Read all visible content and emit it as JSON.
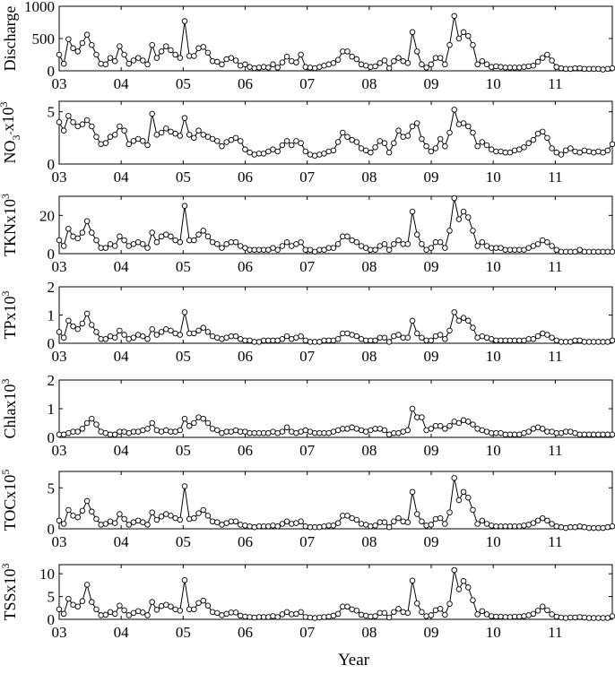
{
  "chart_data": {
    "type": "line",
    "xlabel": "Year",
    "x_ticks": [
      "03",
      "04",
      "05",
      "06",
      "07",
      "08",
      "09",
      "10",
      "11"
    ],
    "x_range": [
      2003.0,
      2011.92
    ],
    "panels": [
      {
        "id": "discharge",
        "ylabel_parts": [
          {
            "t": "Discharge",
            "sup": false
          }
        ],
        "yticks": [
          0,
          500,
          1000
        ],
        "ylim": [
          0,
          1000
        ],
        "values": [
          250,
          110,
          490,
          350,
          300,
          430,
          560,
          400,
          250,
          110,
          100,
          200,
          150,
          380,
          250,
          110,
          160,
          200,
          160,
          100,
          400,
          200,
          300,
          380,
          320,
          250,
          200,
          770,
          230,
          230,
          350,
          370,
          280,
          150,
          140,
          100,
          180,
          200,
          160,
          80,
          100,
          60,
          40,
          50,
          60,
          50,
          100,
          50,
          130,
          220,
          150,
          130,
          250,
          60,
          50,
          40,
          60,
          80,
          100,
          120,
          170,
          300,
          300,
          220,
          180,
          100,
          80,
          60,
          70,
          120,
          160,
          40,
          150,
          200,
          150,
          120,
          600,
          300,
          100,
          50,
          100,
          200,
          200,
          100,
          400,
          850,
          500,
          600,
          540,
          400,
          100,
          150,
          100,
          60,
          70,
          60,
          50,
          50,
          50,
          50,
          60,
          70,
          80,
          140,
          200,
          250,
          160,
          60,
          40,
          30,
          30,
          40,
          40,
          30,
          30,
          30,
          30,
          20,
          30,
          40
        ]
      },
      {
        "id": "no3",
        "ylabel_parts": [
          {
            "t": "NO",
            "sup": false
          },
          {
            "t": "3",
            "sub": true
          },
          {
            "t": "-",
            "sup": true
          },
          {
            "t": "x10",
            "sup": false
          },
          {
            "t": "3",
            "sup": true
          }
        ],
        "yticks": [
          0,
          5
        ],
        "ylim": [
          0,
          6
        ],
        "values": [
          4.0,
          3.2,
          4.6,
          4.0,
          3.6,
          3.8,
          4.2,
          3.6,
          2.6,
          1.9,
          2.0,
          2.6,
          2.8,
          3.6,
          3.2,
          1.9,
          2.2,
          2.4,
          2.2,
          1.8,
          4.8,
          2.8,
          3.0,
          3.4,
          3.1,
          2.9,
          2.7,
          4.4,
          2.8,
          2.5,
          3.2,
          2.8,
          2.6,
          2.4,
          2.2,
          1.7,
          2.1,
          2.3,
          2.5,
          2.2,
          1.4,
          1.1,
          0.9,
          1.0,
          1.0,
          1.2,
          1.4,
          1.2,
          1.8,
          2.2,
          1.8,
          2.2,
          2.0,
          1.2,
          0.9,
          0.8,
          0.9,
          1.0,
          1.2,
          1.3,
          2.1,
          3.0,
          2.6,
          2.3,
          2.1,
          1.5,
          1.3,
          1.1,
          1.6,
          2.2,
          2.0,
          1.1,
          2.0,
          3.2,
          2.6,
          2.7,
          3.6,
          3.9,
          2.4,
          1.7,
          1.2,
          1.5,
          2.4,
          1.7,
          3.0,
          5.2,
          3.8,
          3.9,
          3.6,
          3.0,
          1.7,
          2.1,
          1.8,
          1.4,
          1.2,
          1.2,
          1.1,
          1.1,
          1.3,
          1.4,
          1.6,
          2.0,
          2.3,
          2.9,
          3.1,
          2.5,
          1.5,
          1.1,
          0.9,
          1.3,
          1.5,
          1.2,
          1.1,
          1.3,
          1.2,
          1.1,
          1.2,
          1.1,
          1.3,
          1.9
        ]
      },
      {
        "id": "tkn",
        "ylabel_parts": [
          {
            "t": "TKNx10",
            "sup": false
          },
          {
            "t": "3",
            "sup": true
          }
        ],
        "yticks": [
          0,
          20
        ],
        "ylim": [
          0,
          30
        ],
        "values": [
          7,
          4,
          13,
          9,
          8,
          11,
          17,
          11,
          7,
          3,
          3,
          5,
          4,
          9,
          7,
          4,
          5,
          6,
          5,
          3,
          11,
          6,
          9,
          10,
          9,
          7,
          6,
          25,
          7,
          7,
          10,
          12,
          9,
          6,
          5,
          3,
          5,
          6,
          6,
          4,
          3,
          2,
          2,
          2,
          2,
          2,
          3,
          2,
          4,
          6,
          4,
          5,
          6,
          2,
          2,
          1,
          2,
          2,
          3,
          3,
          5,
          9,
          9,
          7,
          6,
          4,
          3,
          2,
          2,
          4,
          5,
          2,
          5,
          7,
          5,
          5,
          22,
          10,
          5,
          2,
          3,
          6,
          6,
          3,
          12,
          29,
          18,
          22,
          19,
          12,
          4,
          6,
          4,
          3,
          3,
          3,
          2,
          2,
          2,
          2,
          2,
          3,
          4,
          5,
          7,
          6,
          4,
          2,
          1,
          1,
          1,
          1,
          2,
          1,
          1,
          1,
          1,
          1,
          1,
          1
        ]
      },
      {
        "id": "tp",
        "ylabel_parts": [
          {
            "t": "TPx10",
            "sup": false
          },
          {
            "t": "3",
            "sup": true
          }
        ],
        "yticks": [
          0,
          1,
          2
        ],
        "ylim": [
          0,
          2
        ],
        "values": [
          0.4,
          0.2,
          0.8,
          0.6,
          0.5,
          0.7,
          1.05,
          0.65,
          0.4,
          0.15,
          0.15,
          0.25,
          0.2,
          0.45,
          0.3,
          0.15,
          0.2,
          0.3,
          0.25,
          0.15,
          0.5,
          0.3,
          0.4,
          0.5,
          0.45,
          0.35,
          0.3,
          1.1,
          0.35,
          0.35,
          0.45,
          0.55,
          0.4,
          0.25,
          0.2,
          0.15,
          0.2,
          0.25,
          0.25,
          0.15,
          0.1,
          0.1,
          0.05,
          0.05,
          0.1,
          0.1,
          0.1,
          0.1,
          0.15,
          0.25,
          0.15,
          0.2,
          0.25,
          0.1,
          0.05,
          0.05,
          0.05,
          0.1,
          0.1,
          0.1,
          0.15,
          0.35,
          0.35,
          0.3,
          0.25,
          0.15,
          0.1,
          0.1,
          0.1,
          0.2,
          0.2,
          0.05,
          0.25,
          0.3,
          0.2,
          0.2,
          0.8,
          0.35,
          0.2,
          0.1,
          0.1,
          0.25,
          0.3,
          0.15,
          0.45,
          1.1,
          0.8,
          0.9,
          0.8,
          0.55,
          0.2,
          0.25,
          0.2,
          0.15,
          0.1,
          0.1,
          0.1,
          0.1,
          0.1,
          0.1,
          0.1,
          0.15,
          0.15,
          0.25,
          0.35,
          0.3,
          0.2,
          0.1,
          0.05,
          0.05,
          0.05,
          0.1,
          0.1,
          0.05,
          0.05,
          0.05,
          0.05,
          0.05,
          0.05,
          0.1
        ]
      },
      {
        "id": "chla",
        "ylabel_parts": [
          {
            "t": "Chlax10",
            "sup": false
          },
          {
            "t": "3",
            "sup": true
          }
        ],
        "yticks": [
          0,
          1,
          2
        ],
        "ylim": [
          0,
          2
        ],
        "values": [
          0.1,
          0.1,
          0.15,
          0.2,
          0.2,
          0.3,
          0.5,
          0.65,
          0.45,
          0.2,
          0.15,
          0.1,
          0.1,
          0.2,
          0.2,
          0.15,
          0.2,
          0.2,
          0.25,
          0.3,
          0.5,
          0.25,
          0.2,
          0.25,
          0.2,
          0.2,
          0.25,
          0.65,
          0.4,
          0.5,
          0.7,
          0.65,
          0.5,
          0.3,
          0.25,
          0.15,
          0.2,
          0.2,
          0.25,
          0.2,
          0.2,
          0.15,
          0.15,
          0.15,
          0.15,
          0.15,
          0.2,
          0.15,
          0.2,
          0.35,
          0.2,
          0.15,
          0.2,
          0.25,
          0.2,
          0.15,
          0.15,
          0.15,
          0.15,
          0.2,
          0.25,
          0.3,
          0.3,
          0.35,
          0.3,
          0.25,
          0.2,
          0.25,
          0.3,
          0.3,
          0.25,
          0.1,
          0.15,
          0.15,
          0.2,
          0.25,
          1.0,
          0.7,
          0.7,
          0.25,
          0.3,
          0.4,
          0.4,
          0.3,
          0.4,
          0.55,
          0.5,
          0.6,
          0.55,
          0.45,
          0.3,
          0.25,
          0.2,
          0.15,
          0.15,
          0.15,
          0.1,
          0.1,
          0.1,
          0.1,
          0.15,
          0.2,
          0.3,
          0.35,
          0.3,
          0.2,
          0.2,
          0.15,
          0.15,
          0.2,
          0.2,
          0.15,
          0.1,
          0.1,
          0.1,
          0.1,
          0.1,
          0.1,
          0.1,
          0.1
        ]
      },
      {
        "id": "toc",
        "ylabel_parts": [
          {
            "t": "TOCx10",
            "sup": false
          },
          {
            "t": "5",
            "sup": true
          }
        ],
        "yticks": [
          0,
          5
        ],
        "ylim": [
          0,
          7
        ],
        "values": [
          1.0,
          0.6,
          2.3,
          1.6,
          1.4,
          2.2,
          3.4,
          2.1,
          1.2,
          0.5,
          0.6,
          0.9,
          0.7,
          1.8,
          1.2,
          0.5,
          0.8,
          1.0,
          0.8,
          0.5,
          2.0,
          1.1,
          1.5,
          1.8,
          1.6,
          1.3,
          1.1,
          5.2,
          1.2,
          1.3,
          1.9,
          2.3,
          1.6,
          0.9,
          0.8,
          0.5,
          0.7,
          0.9,
          0.9,
          0.5,
          0.4,
          0.3,
          0.2,
          0.3,
          0.3,
          0.3,
          0.4,
          0.3,
          0.6,
          0.9,
          0.6,
          0.7,
          0.9,
          0.3,
          0.2,
          0.2,
          0.2,
          0.3,
          0.4,
          0.4,
          0.7,
          1.6,
          1.6,
          1.3,
          1.1,
          0.6,
          0.5,
          0.3,
          0.4,
          0.8,
          0.8,
          0.2,
          0.9,
          1.3,
          0.9,
          0.8,
          4.5,
          1.8,
          0.9,
          0.4,
          0.5,
          1.2,
          1.3,
          0.6,
          2.0,
          6.2,
          3.5,
          4.5,
          3.8,
          2.3,
          0.6,
          1.0,
          0.6,
          0.4,
          0.3,
          0.3,
          0.3,
          0.3,
          0.3,
          0.3,
          0.4,
          0.5,
          0.7,
          1.0,
          1.3,
          1.0,
          0.6,
          0.3,
          0.2,
          0.1,
          0.2,
          0.2,
          0.3,
          0.2,
          0.1,
          0.1,
          0.1,
          0.1,
          0.2,
          0.3
        ]
      },
      {
        "id": "tss",
        "ylabel_parts": [
          {
            "t": "TSSx10",
            "sup": false
          },
          {
            "t": "3",
            "sup": true
          }
        ],
        "yticks": [
          0,
          5,
          10
        ],
        "ylim": [
          0,
          12
        ],
        "values": [
          2.2,
          1.2,
          4.5,
          3.2,
          2.8,
          4.0,
          7.6,
          3.8,
          2.2,
          0.9,
          1.0,
          1.6,
          1.2,
          3.0,
          2.0,
          0.9,
          1.4,
          1.8,
          1.5,
          0.9,
          3.8,
          2.1,
          2.9,
          3.2,
          2.8,
          2.2,
          1.9,
          8.6,
          2.2,
          2.2,
          3.6,
          4.1,
          3.0,
          1.6,
          1.4,
          0.9,
          1.2,
          1.5,
          1.5,
          0.8,
          0.6,
          0.5,
          0.4,
          0.5,
          0.5,
          0.5,
          0.7,
          0.5,
          1.1,
          1.6,
          1.1,
          1.2,
          1.6,
          0.5,
          0.4,
          0.3,
          0.4,
          0.5,
          0.6,
          0.8,
          1.2,
          2.8,
          2.8,
          2.2,
          1.9,
          1.0,
          0.8,
          0.6,
          0.7,
          1.4,
          1.4,
          0.4,
          1.6,
          2.3,
          1.6,
          1.4,
          8.5,
          3.5,
          1.6,
          0.7,
          0.9,
          2.0,
          2.3,
          1.0,
          3.4,
          10.8,
          6.6,
          8.4,
          7.0,
          4.2,
          1.1,
          1.8,
          1.1,
          0.7,
          0.6,
          0.6,
          0.5,
          0.5,
          0.6,
          0.6,
          0.7,
          0.9,
          1.2,
          1.9,
          2.8,
          2.0,
          1.1,
          0.6,
          0.4,
          0.3,
          0.4,
          0.4,
          0.5,
          0.4,
          0.3,
          0.3,
          0.3,
          0.3,
          0.3,
          0.7
        ]
      }
    ]
  }
}
